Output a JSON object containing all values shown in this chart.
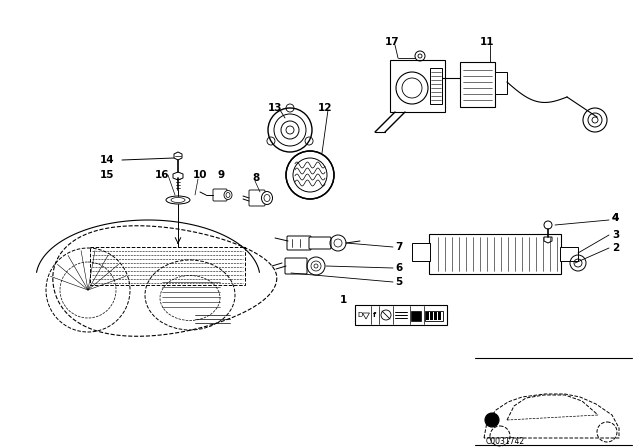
{
  "bg_color": "#ffffff",
  "fig_width": 6.4,
  "fig_height": 4.48,
  "watermark": "C0031742",
  "dpi": 100
}
